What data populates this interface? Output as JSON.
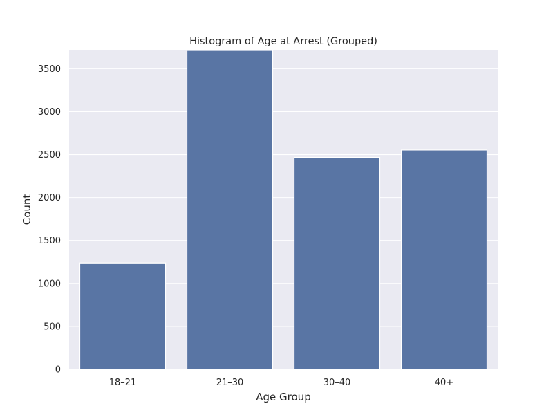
{
  "chart_data": {
    "type": "bar",
    "title": "Histogram of Age at Arrest (Grouped)",
    "xlabel": "Age Group",
    "ylabel": "Count",
    "categories": [
      "18–21",
      "21–30",
      "30–40",
      "40+"
    ],
    "values": [
      1238,
      3712,
      2468,
      2553
    ],
    "ylim": [
      0,
      3720
    ],
    "yticks": [
      0,
      500,
      1000,
      1500,
      2000,
      2500,
      3000,
      3500
    ],
    "grid": true,
    "colors": {
      "bar": "#5975a4",
      "plot_background": "#eaeaf2",
      "grid": "#ffffff",
      "text": "#262626"
    }
  }
}
